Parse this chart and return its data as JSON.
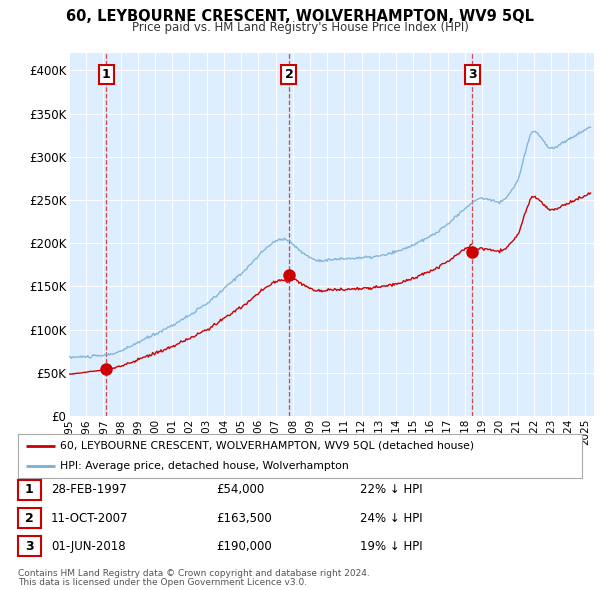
{
  "title": "60, LEYBOURNE CRESCENT, WOLVERHAMPTON, WV9 5QL",
  "subtitle": "Price paid vs. HM Land Registry's House Price Index (HPI)",
  "background_color": "#ffffff",
  "plot_bg_color": "#ddeeff",
  "grid_color": "#ffffff",
  "ylim": [
    0,
    420000
  ],
  "xlim_start": 1995.0,
  "xlim_end": 2025.5,
  "yticks": [
    0,
    50000,
    100000,
    150000,
    200000,
    250000,
    300000,
    350000,
    400000
  ],
  "ytick_labels": [
    "£0",
    "£50K",
    "£100K",
    "£150K",
    "£200K",
    "£250K",
    "£300K",
    "£350K",
    "£400K"
  ],
  "sale_dates_num": [
    1997.15,
    2007.78,
    2018.42
  ],
  "sale_prices": [
    54000,
    163500,
    190000
  ],
  "sale_labels": [
    "1",
    "2",
    "3"
  ],
  "sale_date_str": [
    "28-FEB-1997",
    "11-OCT-2007",
    "01-JUN-2018"
  ],
  "sale_price_str": [
    "£54,000",
    "£163,500",
    "£190,000"
  ],
  "sale_pct_str": [
    "22% ↓ HPI",
    "24% ↓ HPI",
    "19% ↓ HPI"
  ],
  "red_line_color": "#cc0000",
  "blue_line_color": "#7ab0d4",
  "marker_color": "#cc0000",
  "vline_color": "#cc0000",
  "legend1": "60, LEYBOURNE CRESCENT, WOLVERHAMPTON, WV9 5QL (detached house)",
  "legend2": "HPI: Average price, detached house, Wolverhampton",
  "footer1": "Contains HM Land Registry data © Crown copyright and database right 2024.",
  "footer2": "This data is licensed under the Open Government Licence v3.0."
}
